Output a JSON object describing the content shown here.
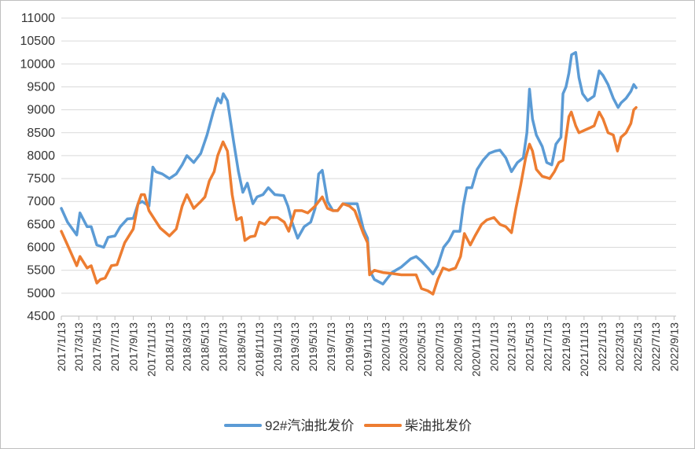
{
  "chart_data": {
    "type": "line",
    "title": "",
    "xlabel": "",
    "ylabel": "",
    "ylim": [
      4500,
      11000
    ],
    "y_ticks": [
      4500,
      5000,
      5500,
      6000,
      6500,
      7000,
      7500,
      8000,
      8500,
      9000,
      9500,
      10000,
      10500,
      11000
    ],
    "x_range": [
      "2017-01-13",
      "2022-09-20"
    ],
    "x_tick_labels": [
      "2017/1/13",
      "2017/3/13",
      "2017/5/13",
      "2017/7/13",
      "2017/9/13",
      "2017/11/13",
      "2018/1/13",
      "2018/3/13",
      "2018/5/13",
      "2018/7/13",
      "2018/9/13",
      "2018/11/13",
      "2019/1/13",
      "2019/3/13",
      "2019/5/13",
      "2019/7/13",
      "2019/9/13",
      "2019/11/13",
      "2020/1/13",
      "2020/3/13",
      "2020/5/13",
      "2020/7/13",
      "2020/9/13",
      "2020/11/13",
      "2021/1/13",
      "2021/3/13",
      "2021/5/13",
      "2021/7/13",
      "2021/9/13",
      "2021/11/13",
      "2022/1/13",
      "2022/3/13",
      "2022/5/13",
      "2022/7/13",
      "2022/9/13"
    ],
    "grid": {
      "horizontal": true,
      "vertical": false
    },
    "legend_position": "bottom",
    "colors": {
      "gasoline": "#5B9BD5",
      "diesel": "#ED7D31"
    },
    "series": [
      {
        "name": "92#汽油批发价",
        "points": [
          [
            "2017-01-13",
            6850
          ],
          [
            "2017-02-03",
            6550
          ],
          [
            "2017-03-06",
            6270
          ],
          [
            "2017-03-17",
            6750
          ],
          [
            "2017-04-10",
            6450
          ],
          [
            "2017-04-24",
            6450
          ],
          [
            "2017-05-13",
            6050
          ],
          [
            "2017-06-05",
            6000
          ],
          [
            "2017-06-20",
            6220
          ],
          [
            "2017-07-13",
            6250
          ],
          [
            "2017-07-31",
            6450
          ],
          [
            "2017-08-24",
            6620
          ],
          [
            "2017-09-13",
            6630
          ],
          [
            "2017-09-29",
            6950
          ],
          [
            "2017-10-13",
            7000
          ],
          [
            "2017-11-05",
            6900
          ],
          [
            "2017-11-18",
            7750
          ],
          [
            "2017-11-28",
            7650
          ],
          [
            "2017-12-20",
            7600
          ],
          [
            "2018-01-13",
            7500
          ],
          [
            "2018-02-05",
            7600
          ],
          [
            "2018-02-25",
            7800
          ],
          [
            "2018-03-13",
            8000
          ],
          [
            "2018-04-05",
            7850
          ],
          [
            "2018-04-29",
            8050
          ],
          [
            "2018-05-20",
            8450
          ],
          [
            "2018-06-10",
            8950
          ],
          [
            "2018-06-25",
            9250
          ],
          [
            "2018-07-06",
            9150
          ],
          [
            "2018-07-14",
            9350
          ],
          [
            "2018-07-28",
            9200
          ],
          [
            "2018-08-18",
            8300
          ],
          [
            "2018-09-03",
            7650
          ],
          [
            "2018-09-18",
            7200
          ],
          [
            "2018-10-03",
            7400
          ],
          [
            "2018-10-22",
            6950
          ],
          [
            "2018-11-05",
            7100
          ],
          [
            "2018-11-25",
            7150
          ],
          [
            "2018-12-13",
            7300
          ],
          [
            "2019-01-04",
            7150
          ],
          [
            "2019-02-03",
            7130
          ],
          [
            "2019-02-17",
            6900
          ],
          [
            "2019-03-03",
            6550
          ],
          [
            "2019-03-22",
            6200
          ],
          [
            "2019-04-13",
            6450
          ],
          [
            "2019-05-05",
            6550
          ],
          [
            "2019-05-20",
            6850
          ],
          [
            "2019-06-01",
            7600
          ],
          [
            "2019-06-13",
            7680
          ],
          [
            "2019-07-01",
            7000
          ],
          [
            "2019-07-19",
            6800
          ],
          [
            "2019-08-04",
            6800
          ],
          [
            "2019-08-22",
            6950
          ],
          [
            "2019-09-17",
            6950
          ],
          [
            "2019-10-09",
            6950
          ],
          [
            "2019-10-30",
            6400
          ],
          [
            "2019-11-13",
            6200
          ],
          [
            "2019-11-20",
            5500
          ],
          [
            "2019-12-06",
            5300
          ],
          [
            "2020-01-04",
            5200
          ],
          [
            "2020-02-03",
            5450
          ],
          [
            "2020-03-06",
            5570
          ],
          [
            "2020-04-07",
            5750
          ],
          [
            "2020-04-25",
            5800
          ],
          [
            "2020-05-13",
            5700
          ],
          [
            "2020-06-04",
            5550
          ],
          [
            "2020-06-21",
            5420
          ],
          [
            "2020-07-07",
            5600
          ],
          [
            "2020-07-27",
            6000
          ],
          [
            "2020-08-14",
            6150
          ],
          [
            "2020-08-30",
            6350
          ],
          [
            "2020-09-20",
            6350
          ],
          [
            "2020-10-01",
            6900
          ],
          [
            "2020-10-13",
            7300
          ],
          [
            "2020-10-30",
            7300
          ],
          [
            "2020-11-17",
            7700
          ],
          [
            "2020-12-07",
            7900
          ],
          [
            "2020-12-28",
            8050
          ],
          [
            "2021-01-17",
            8100
          ],
          [
            "2021-02-02",
            8120
          ],
          [
            "2021-02-22",
            7950
          ],
          [
            "2021-03-13",
            7650
          ],
          [
            "2021-04-02",
            7850
          ],
          [
            "2021-04-22",
            7950
          ],
          [
            "2021-05-04",
            8500
          ],
          [
            "2021-05-13",
            9450
          ],
          [
            "2021-05-23",
            8800
          ],
          [
            "2021-06-05",
            8450
          ],
          [
            "2021-06-25",
            8200
          ],
          [
            "2021-07-10",
            7850
          ],
          [
            "2021-07-27",
            7800
          ],
          [
            "2021-08-10",
            8250
          ],
          [
            "2021-08-27",
            8400
          ],
          [
            "2021-09-03",
            9350
          ],
          [
            "2021-09-13",
            9500
          ],
          [
            "2021-09-23",
            9800
          ],
          [
            "2021-10-02",
            10200
          ],
          [
            "2021-10-16",
            10250
          ],
          [
            "2021-10-27",
            9700
          ],
          [
            "2021-11-08",
            9350
          ],
          [
            "2021-11-25",
            9200
          ],
          [
            "2021-12-17",
            9300
          ],
          [
            "2022-01-03",
            9850
          ],
          [
            "2022-01-16",
            9750
          ],
          [
            "2022-02-02",
            9550
          ],
          [
            "2022-02-20",
            9250
          ],
          [
            "2022-03-08",
            9050
          ],
          [
            "2022-03-18",
            9150
          ],
          [
            "2022-04-04",
            9250
          ],
          [
            "2022-04-20",
            9400
          ],
          [
            "2022-04-30",
            9550
          ],
          [
            "2022-05-08",
            9480
          ]
        ]
      },
      {
        "name": "柴油批发价",
        "points": [
          [
            "2017-01-13",
            6350
          ],
          [
            "2017-02-03",
            6050
          ],
          [
            "2017-03-06",
            5600
          ],
          [
            "2017-03-17",
            5800
          ],
          [
            "2017-04-10",
            5550
          ],
          [
            "2017-04-24",
            5600
          ],
          [
            "2017-05-13",
            5220
          ],
          [
            "2017-05-25",
            5300
          ],
          [
            "2017-06-10",
            5330
          ],
          [
            "2017-07-01",
            5600
          ],
          [
            "2017-07-20",
            5620
          ],
          [
            "2017-08-15",
            6100
          ],
          [
            "2017-09-13",
            6400
          ],
          [
            "2017-09-29",
            6950
          ],
          [
            "2017-10-10",
            7150
          ],
          [
            "2017-10-21",
            7150
          ],
          [
            "2017-11-05",
            6800
          ],
          [
            "2017-11-25",
            6600
          ],
          [
            "2017-12-13",
            6420
          ],
          [
            "2018-01-13",
            6250
          ],
          [
            "2018-02-05",
            6400
          ],
          [
            "2018-02-25",
            6900
          ],
          [
            "2018-03-13",
            7150
          ],
          [
            "2018-04-05",
            6850
          ],
          [
            "2018-04-29",
            7000
          ],
          [
            "2018-05-13",
            7100
          ],
          [
            "2018-05-28",
            7450
          ],
          [
            "2018-06-13",
            7650
          ],
          [
            "2018-06-25",
            8000
          ],
          [
            "2018-07-13",
            8300
          ],
          [
            "2018-07-28",
            8100
          ],
          [
            "2018-08-13",
            7150
          ],
          [
            "2018-08-28",
            6600
          ],
          [
            "2018-09-13",
            6650
          ],
          [
            "2018-09-25",
            6150
          ],
          [
            "2018-10-13",
            6230
          ],
          [
            "2018-10-29",
            6250
          ],
          [
            "2018-11-13",
            6550
          ],
          [
            "2018-12-01",
            6500
          ],
          [
            "2018-12-20",
            6650
          ],
          [
            "2019-01-13",
            6650
          ],
          [
            "2019-02-05",
            6550
          ],
          [
            "2019-02-20",
            6350
          ],
          [
            "2019-03-13",
            6800
          ],
          [
            "2019-04-05",
            6800
          ],
          [
            "2019-04-25",
            6750
          ],
          [
            "2019-05-20",
            6900
          ],
          [
            "2019-06-13",
            7100
          ],
          [
            "2019-07-01",
            6850
          ],
          [
            "2019-07-19",
            6800
          ],
          [
            "2019-08-04",
            6800
          ],
          [
            "2019-08-22",
            6950
          ],
          [
            "2019-09-13",
            6900
          ],
          [
            "2019-10-01",
            6800
          ],
          [
            "2019-10-30",
            6300
          ],
          [
            "2019-11-13",
            6100
          ],
          [
            "2019-11-20",
            5400
          ],
          [
            "2019-12-06",
            5500
          ],
          [
            "2020-01-04",
            5450
          ],
          [
            "2020-02-03",
            5430
          ],
          [
            "2020-03-06",
            5400
          ],
          [
            "2020-04-07",
            5400
          ],
          [
            "2020-04-25",
            5400
          ],
          [
            "2020-05-13",
            5100
          ],
          [
            "2020-06-04",
            5050
          ],
          [
            "2020-06-21",
            4980
          ],
          [
            "2020-07-07",
            5300
          ],
          [
            "2020-07-25",
            5550
          ],
          [
            "2020-08-14",
            5500
          ],
          [
            "2020-09-05",
            5550
          ],
          [
            "2020-09-22",
            5800
          ],
          [
            "2020-10-05",
            6300
          ],
          [
            "2020-10-25",
            6050
          ],
          [
            "2020-11-10",
            6250
          ],
          [
            "2020-12-02",
            6500
          ],
          [
            "2020-12-20",
            6600
          ],
          [
            "2021-01-13",
            6650
          ],
          [
            "2021-02-02",
            6500
          ],
          [
            "2021-02-22",
            6450
          ],
          [
            "2021-03-13",
            6320
          ],
          [
            "2021-03-28",
            6850
          ],
          [
            "2021-04-13",
            7350
          ],
          [
            "2021-04-30",
            7950
          ],
          [
            "2021-05-13",
            8250
          ],
          [
            "2021-05-23",
            8100
          ],
          [
            "2021-06-05",
            7700
          ],
          [
            "2021-06-25",
            7550
          ],
          [
            "2021-07-20",
            7500
          ],
          [
            "2021-08-05",
            7650
          ],
          [
            "2021-08-20",
            7850
          ],
          [
            "2021-09-03",
            7900
          ],
          [
            "2021-09-13",
            8400
          ],
          [
            "2021-09-23",
            8850
          ],
          [
            "2021-10-01",
            8950
          ],
          [
            "2021-10-16",
            8650
          ],
          [
            "2021-10-27",
            8500
          ],
          [
            "2021-11-13",
            8550
          ],
          [
            "2021-12-01",
            8600
          ],
          [
            "2021-12-17",
            8650
          ],
          [
            "2022-01-03",
            8950
          ],
          [
            "2022-01-16",
            8800
          ],
          [
            "2022-02-02",
            8500
          ],
          [
            "2022-02-20",
            8450
          ],
          [
            "2022-03-06",
            8100
          ],
          [
            "2022-03-18",
            8400
          ],
          [
            "2022-04-04",
            8500
          ],
          [
            "2022-04-20",
            8700
          ],
          [
            "2022-04-30",
            9000
          ],
          [
            "2022-05-08",
            9050
          ]
        ]
      }
    ]
  }
}
